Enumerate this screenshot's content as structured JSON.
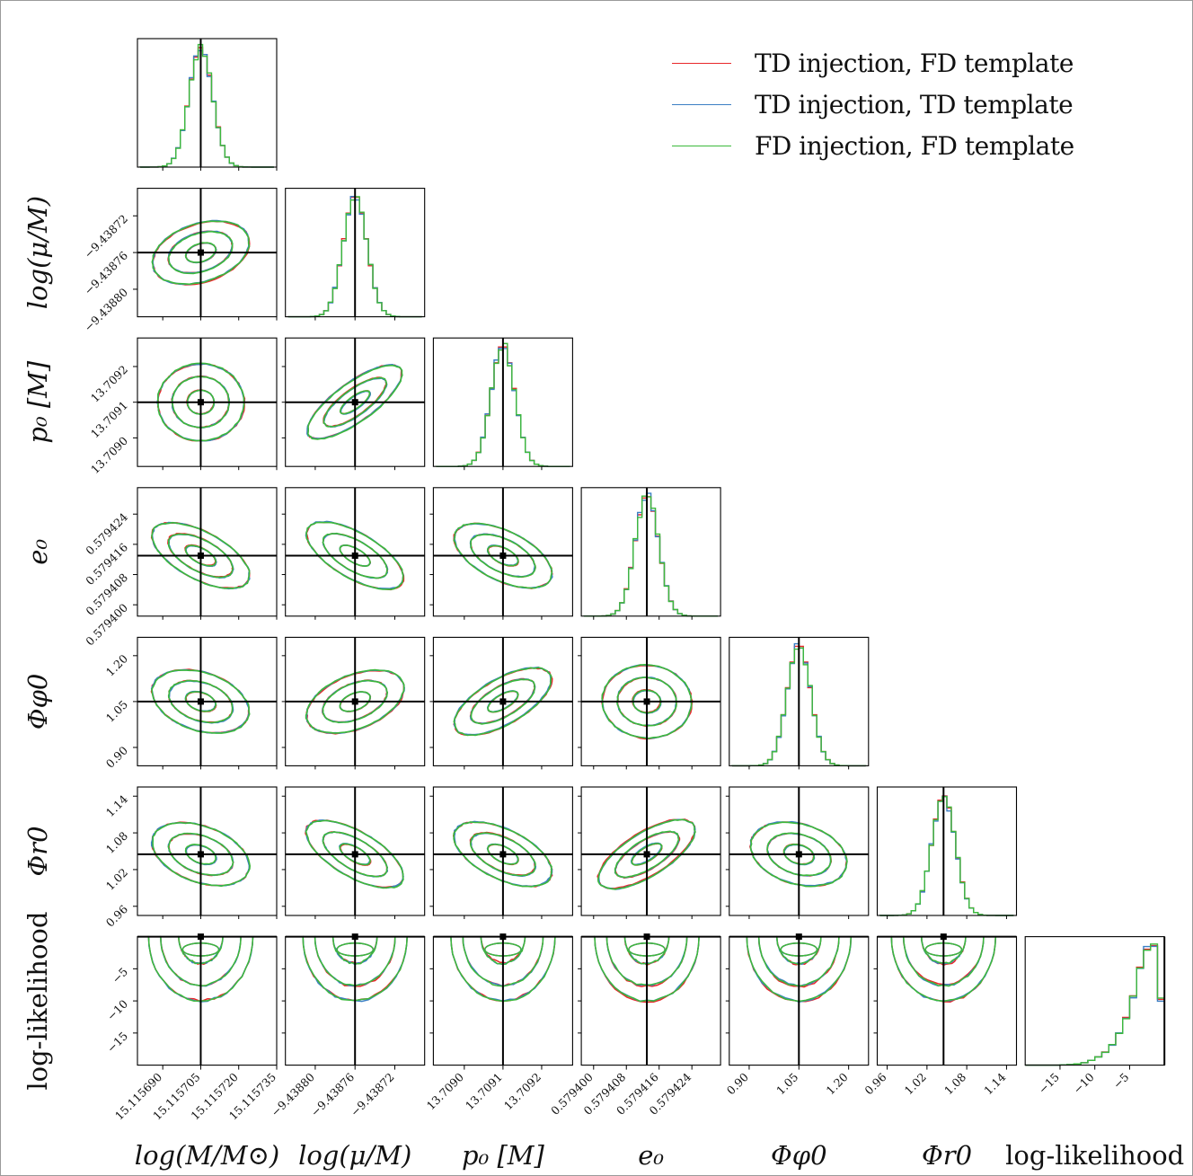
{
  "chart_data": {
    "type": "corner",
    "title": "",
    "parameters": [
      {
        "label": "log(M/M⊙)",
        "truth": 15.115705,
        "range": [
          15.11568,
          15.115735
        ],
        "ticks": [
          "15.115690",
          "15.115705",
          "15.115720",
          "15.115735"
        ],
        "tick_values": [
          15.11569,
          15.115705,
          15.11572,
          15.115735
        ],
        "ytick_labels": false
      },
      {
        "label": "log(μ/M)",
        "truth": -9.43876,
        "range": [
          -9.43883,
          -9.43869
        ],
        "ticks": [
          "−9.43880",
          "−9.43876",
          "−9.43872"
        ],
        "tick_values": [
          -9.4388,
          -9.43876,
          -9.43872
        ]
      },
      {
        "label": "p₀ [M]",
        "truth": 13.7091,
        "range": [
          13.70892,
          13.70928
        ],
        "ticks": [
          "13.7090",
          "13.7091",
          "13.7092"
        ],
        "tick_values": [
          13.709,
          13.7091,
          13.7092
        ]
      },
      {
        "label": "e₀",
        "truth": 0.579413,
        "range": [
          0.579397,
          0.579431
        ],
        "ticks": [
          "0.579400",
          "0.579408",
          "0.579416",
          "0.579424"
        ],
        "tick_values": [
          0.5794,
          0.579408,
          0.579416,
          0.579424
        ]
      },
      {
        "label": "Φφ0",
        "truth": 1.05,
        "range": [
          0.84,
          1.26
        ],
        "ticks": [
          "0.90",
          "1.05",
          "1.20"
        ],
        "tick_values": [
          0.9,
          1.05,
          1.2
        ]
      },
      {
        "label": "Φr0",
        "truth": 1.045,
        "range": [
          0.945,
          1.155
        ],
        "ticks": [
          "0.96",
          "1.02",
          "1.08",
          "1.14"
        ],
        "tick_values": [
          0.96,
          1.02,
          1.08,
          1.14
        ]
      },
      {
        "label": "log-likelihood",
        "truth": 0.0,
        "range": [
          -20.0,
          0.0
        ],
        "ticks": [
          "−15",
          "−10",
          "−5"
        ],
        "tick_values": [
          -15,
          -10,
          -5
        ]
      }
    ],
    "series": [
      {
        "name": "TD injection, FD template",
        "color": "#e8272a"
      },
      {
        "name": "TD injection, TD template",
        "color": "#3b7fc4"
      },
      {
        "name": "FD injection, FD template",
        "color": "#3cb93c"
      }
    ],
    "correlations": {
      "1,0": 0.45,
      "2,0": 0.0,
      "2,1": 0.9,
      "3,0": -0.7,
      "3,1": -0.75,
      "3,2": -0.65,
      "4,0": -0.45,
      "4,1": 0.55,
      "4,2": 0.75,
      "4,3": -0.1,
      "5,0": -0.5,
      "5,1": -0.75,
      "5,2": -0.65,
      "5,3": 0.8,
      "5,4": -0.4
    },
    "loglike_hist": {
      "bins": [
        -20,
        -19,
        -18,
        -17,
        -16,
        -15,
        -14,
        -13,
        -12,
        -11,
        -10,
        -9,
        -8,
        -7,
        -6,
        -5,
        -4,
        -3,
        -2,
        -1,
        0
      ],
      "counts": [
        0,
        0,
        0,
        0,
        0,
        0.002,
        0.005,
        0.01,
        0.02,
        0.04,
        0.07,
        0.11,
        0.17,
        0.27,
        0.4,
        0.58,
        0.82,
        0.97,
        1.0,
        0.55
      ]
    },
    "contour_levels": [
      "1-sigma",
      "2-sigma",
      "3-sigma"
    ],
    "grid": false,
    "legend_position": "top-right"
  }
}
